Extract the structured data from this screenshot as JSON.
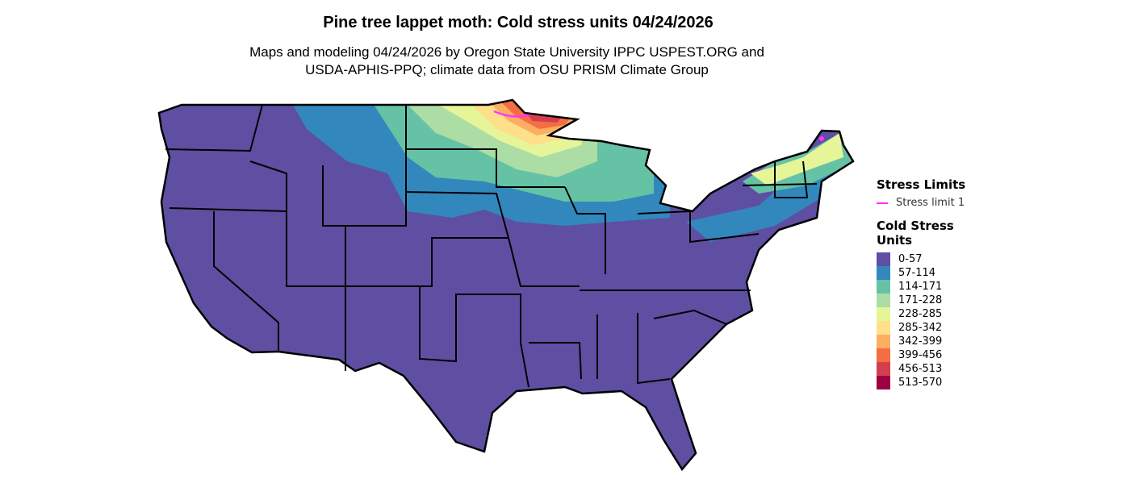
{
  "title": "Pine tree lappet moth: Cold stress units 04/24/2026",
  "subtitle_line1": "Maps and modeling 04/24/2026 by Oregon State University IPPC USPEST.ORG and",
  "subtitle_line2": "USDA-APHIS-PPQ; climate data from OSU PRISM Climate Group",
  "map": {
    "region": "Contiguous United States",
    "stress_limit_color": "#ff33ff",
    "border_color": "#000000"
  },
  "legend": {
    "stress_limits_title": "Stress Limits",
    "stress_limit_label": "Stress limit 1",
    "units_title_line1": "Cold Stress",
    "units_title_line2": "Units",
    "items": [
      {
        "label": "0-57",
        "color": "#5E4FA2"
      },
      {
        "label": "57-114",
        "color": "#3288BD"
      },
      {
        "label": "114-171",
        "color": "#66C2A5"
      },
      {
        "label": "171-228",
        "color": "#ABDDA4"
      },
      {
        "label": "228-285",
        "color": "#E6F598"
      },
      {
        "label": "285-342",
        "color": "#FEE08B"
      },
      {
        "label": "342-399",
        "color": "#FDAE61"
      },
      {
        "label": "399-456",
        "color": "#F46D43"
      },
      {
        "label": "456-513",
        "color": "#D53E4F"
      },
      {
        "label": "513-570",
        "color": "#9E0142"
      }
    ]
  }
}
